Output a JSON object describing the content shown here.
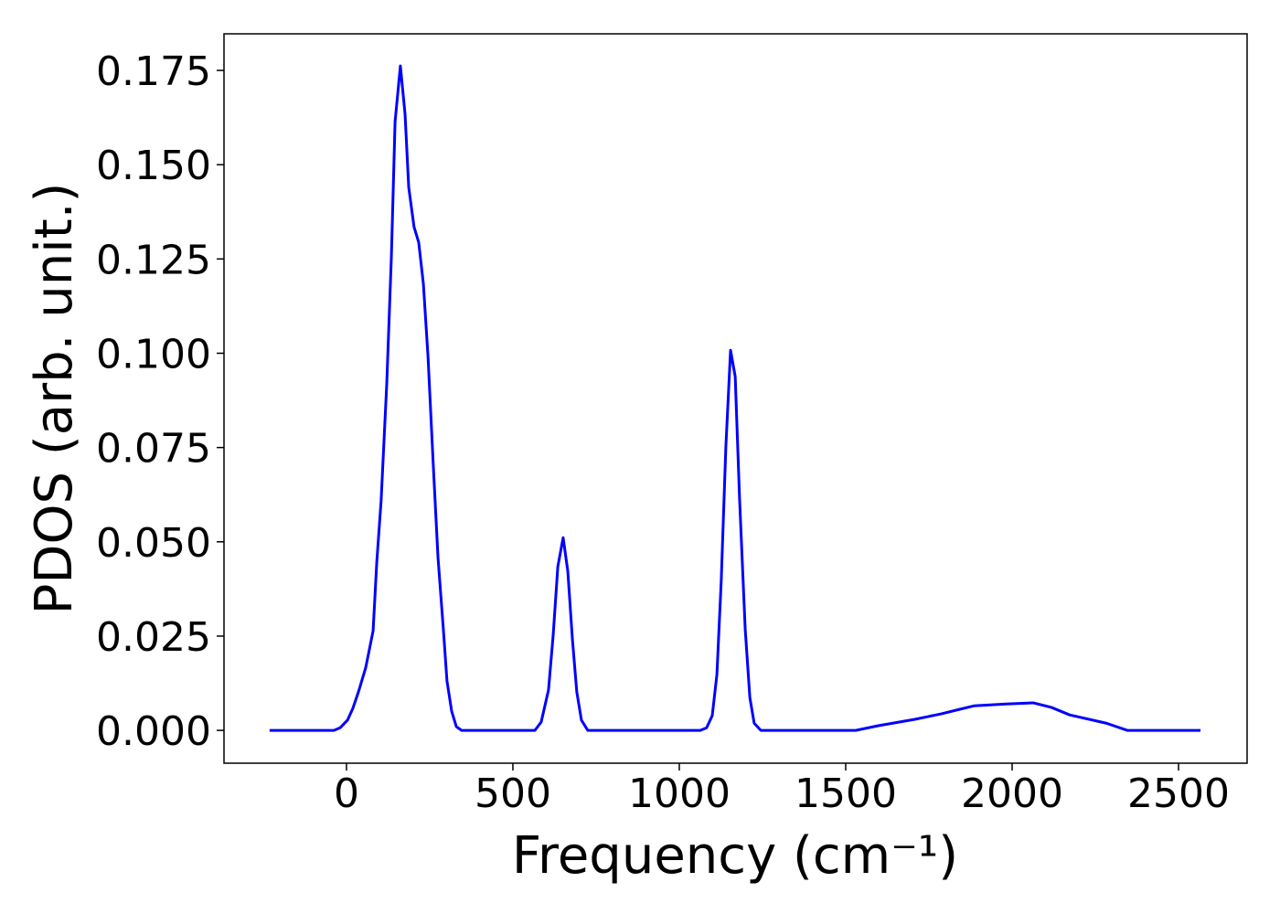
{
  "chart_data": {
    "type": "line",
    "x_label": "Frequency (cm⁻¹)",
    "y_label": "PDOS (arb. unit.)",
    "x": [
      -231,
      -38,
      -19,
      3,
      19,
      36,
      58,
      80,
      91,
      104,
      121,
      135,
      146,
      162,
      176,
      187,
      203,
      217,
      231,
      245,
      261,
      275,
      291,
      302,
      316,
      330,
      346,
      566,
      585,
      607,
      621,
      635,
      651,
      665,
      679,
      692,
      706,
      725,
      1063,
      1082,
      1099,
      1113,
      1126,
      1140,
      1154,
      1168,
      1181,
      1198,
      1212,
      1225,
      1245,
      1530,
      1596,
      1706,
      1788,
      1843,
      1885,
      1981,
      2063,
      2118,
      2173,
      2283,
      2346,
      2566
    ],
    "series": [
      {
        "color": "#0000ff",
        "values": [
          0,
          0,
          0.0007,
          0.0027,
          0.0058,
          0.0102,
          0.0167,
          0.0264,
          0.0446,
          0.0608,
          0.0919,
          0.1258,
          0.1614,
          0.1762,
          0.1634,
          0.144,
          0.1335,
          0.1294,
          0.1185,
          0.0991,
          0.07,
          0.0458,
          0.0269,
          0.0131,
          0.0051,
          0.001,
          0,
          0,
          0.0022,
          0.0107,
          0.0252,
          0.0434,
          0.0511,
          0.0422,
          0.024,
          0.0102,
          0.0027,
          0,
          0,
          0.0007,
          0.0039,
          0.0148,
          0.0397,
          0.0754,
          0.1008,
          0.0938,
          0.0616,
          0.0269,
          0.0087,
          0.0019,
          0,
          0,
          0.0012,
          0.0029,
          0.0044,
          0.0056,
          0.0065,
          0.007,
          0.0073,
          0.0061,
          0.0041,
          0.0019,
          0,
          0
        ]
      }
    ],
    "xlim": [
      -368,
      2706
    ],
    "ylim": [
      -0.0087,
      0.1847
    ],
    "xticks": [
      0,
      500,
      1000,
      1500,
      2000,
      2500
    ],
    "yticks": [
      {
        "value": 0,
        "label": "0.000"
      },
      {
        "value": 0.025,
        "label": "0.025"
      },
      {
        "value": 0.05,
        "label": "0.050"
      },
      {
        "value": 0.075,
        "label": "0.075"
      },
      {
        "value": 0.1,
        "label": "0.100"
      },
      {
        "value": 0.125,
        "label": "0.125"
      },
      {
        "value": 0.15,
        "label": "0.150"
      },
      {
        "value": 0.175,
        "label": "0.175"
      }
    ],
    "grid": false
  }
}
